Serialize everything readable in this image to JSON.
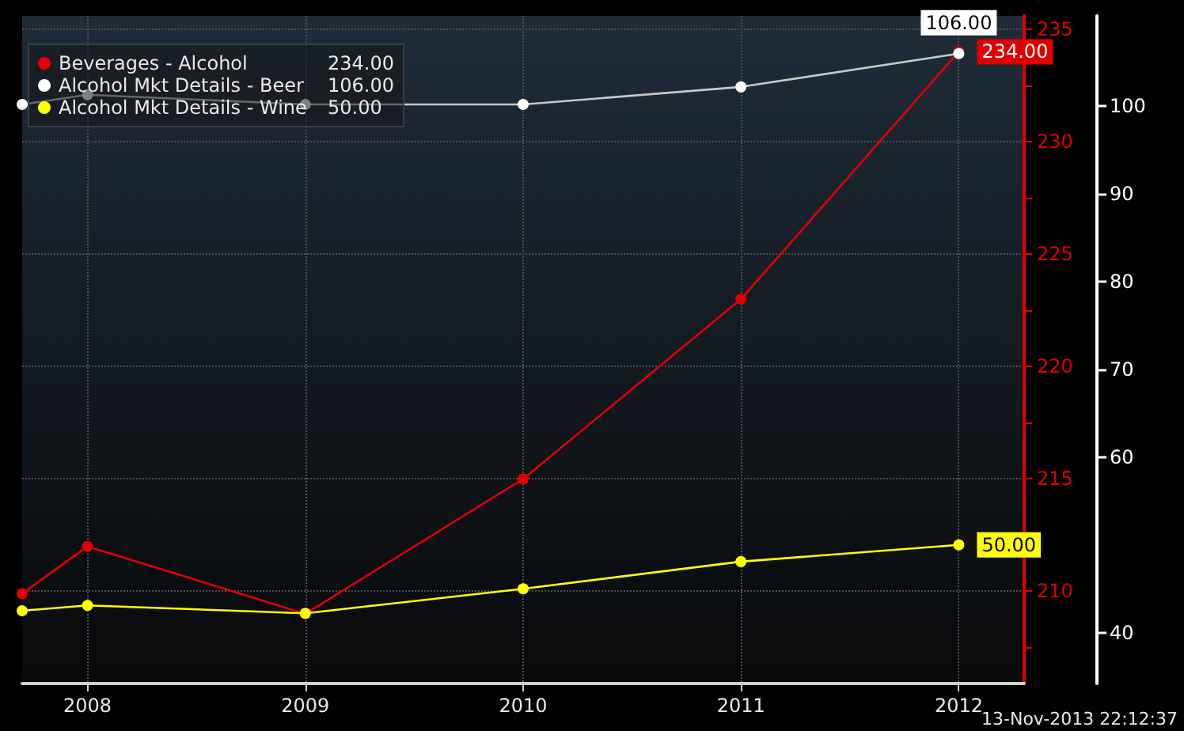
{
  "chart_data": {
    "type": "line",
    "x": [
      2007.7,
      2008,
      2009,
      2010,
      2011,
      2012
    ],
    "xlim": [
      2007.7,
      2012.3
    ],
    "xticks": [
      2008,
      2009,
      2010,
      2011,
      2012
    ],
    "ylim": [
      205.9,
      235.6
    ],
    "yticks": [
      {
        "value": 207.5,
        "label": null
      },
      210,
      {
        "value": 212.5,
        "label": null
      },
      215,
      {
        "value": 217.5,
        "label": null
      },
      220,
      {
        "value": 222.5,
        "label": null
      },
      225,
      {
        "value": 227.5,
        "label": null
      },
      230,
      {
        "value": 232.5,
        "label": null
      },
      235
    ],
    "y2lim": [
      34.2,
      110.3
    ],
    "y2ticks": [
      40,
      60,
      70,
      80,
      90,
      100
    ],
    "series": [
      {
        "name": "Beverages - Alcohol",
        "color": "#e00000",
        "values": [
          209.9,
          212,
          209,
          215,
          223,
          234
        ],
        "value_labels": [
          null,
          null,
          null,
          null,
          null,
          "234.00"
        ]
      },
      {
        "name": "Alcohol Mkt Details - Beer",
        "color": "#ffffff",
        "axis": "y2",
        "values": [
          100.2,
          101.3,
          100.2,
          100.2,
          102.2,
          106
        ],
        "value_labels": [
          null,
          null,
          null,
          null,
          null,
          "106.00"
        ]
      },
      {
        "name": "Alcohol Mkt Details - Wine",
        "color": "#ffff00",
        "axis": "y2",
        "values": [
          42.5,
          43.1,
          42.2,
          45,
          48.1,
          50
        ],
        "value_labels": [
          null,
          null,
          null,
          null,
          null,
          "50.00"
        ]
      }
    ],
    "grid": true,
    "legend": "top left",
    "marker": "circle",
    "annotations": [
      "13-Nov-2013 22:12:37"
    ]
  }
}
